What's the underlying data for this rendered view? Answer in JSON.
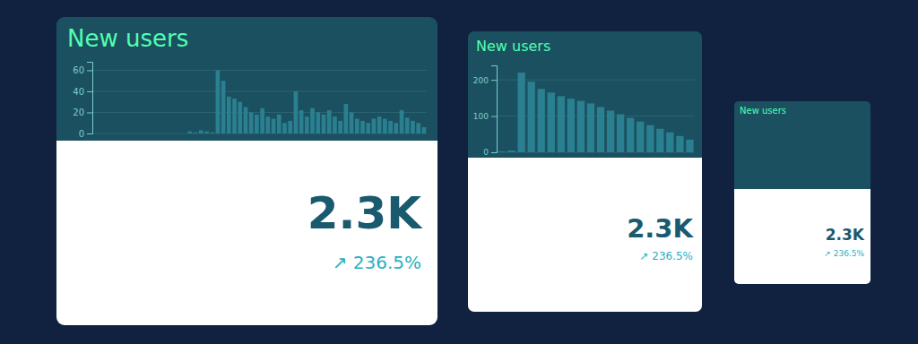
{
  "chart_data": [
    {
      "type": "bar",
      "title": "New users",
      "categories": [
        null,
        null,
        null,
        null,
        null,
        null,
        null,
        null,
        null,
        null,
        null,
        null,
        null,
        null,
        null,
        null,
        null,
        null,
        null,
        null,
        null,
        null,
        null,
        null,
        null,
        null,
        null,
        null,
        null,
        null,
        null,
        null,
        null,
        null,
        null,
        null,
        null,
        null,
        null,
        null,
        null,
        null,
        null,
        null,
        null,
        null,
        null,
        null,
        null,
        null,
        null,
        null,
        null,
        null,
        null,
        null,
        null,
        null,
        null,
        null
      ],
      "values": [
        0,
        0,
        0,
        0,
        0,
        0,
        0,
        0,
        0,
        0,
        0,
        0,
        0,
        0,
        0,
        0,
        0,
        2,
        1,
        3,
        2,
        1,
        60,
        50,
        35,
        33,
        30,
        25,
        20,
        18,
        24,
        16,
        14,
        18,
        10,
        12,
        40,
        22,
        16,
        24,
        20,
        18,
        22,
        16,
        12,
        28,
        20,
        14,
        12,
        10,
        14,
        16,
        14,
        12,
        10,
        22,
        15,
        12,
        10,
        6
      ],
      "color": "#2a8090",
      "ylim": [
        0,
        68
      ],
      "yticks": [
        0,
        20,
        40,
        60
      ],
      "grid": true,
      "tick_labels": "y",
      "annotations": [
        "2.3K",
        "↗ 236.5%"
      ]
    },
    {
      "type": "bar",
      "title": "New users",
      "categories": [
        null,
        null,
        null,
        null,
        null,
        null,
        null,
        null,
        null,
        null,
        null,
        null,
        null,
        null,
        null,
        null,
        null,
        null,
        null,
        null
      ],
      "values": [
        2,
        5,
        220,
        195,
        175,
        165,
        155,
        148,
        142,
        135,
        125,
        115,
        105,
        95,
        85,
        75,
        65,
        55,
        45,
        35
      ],
      "color": "#2a8090",
      "ylim": [
        0,
        240
      ],
      "yticks": [
        0,
        100,
        200
      ],
      "grid": true,
      "tick_labels": "y",
      "annotations": [
        "2.3K",
        "↗ 236.5%"
      ]
    },
    {
      "type": "kpi",
      "title": "New users",
      "annotations": [
        "2.3K",
        "↗ 236.5%"
      ]
    }
  ]
}
